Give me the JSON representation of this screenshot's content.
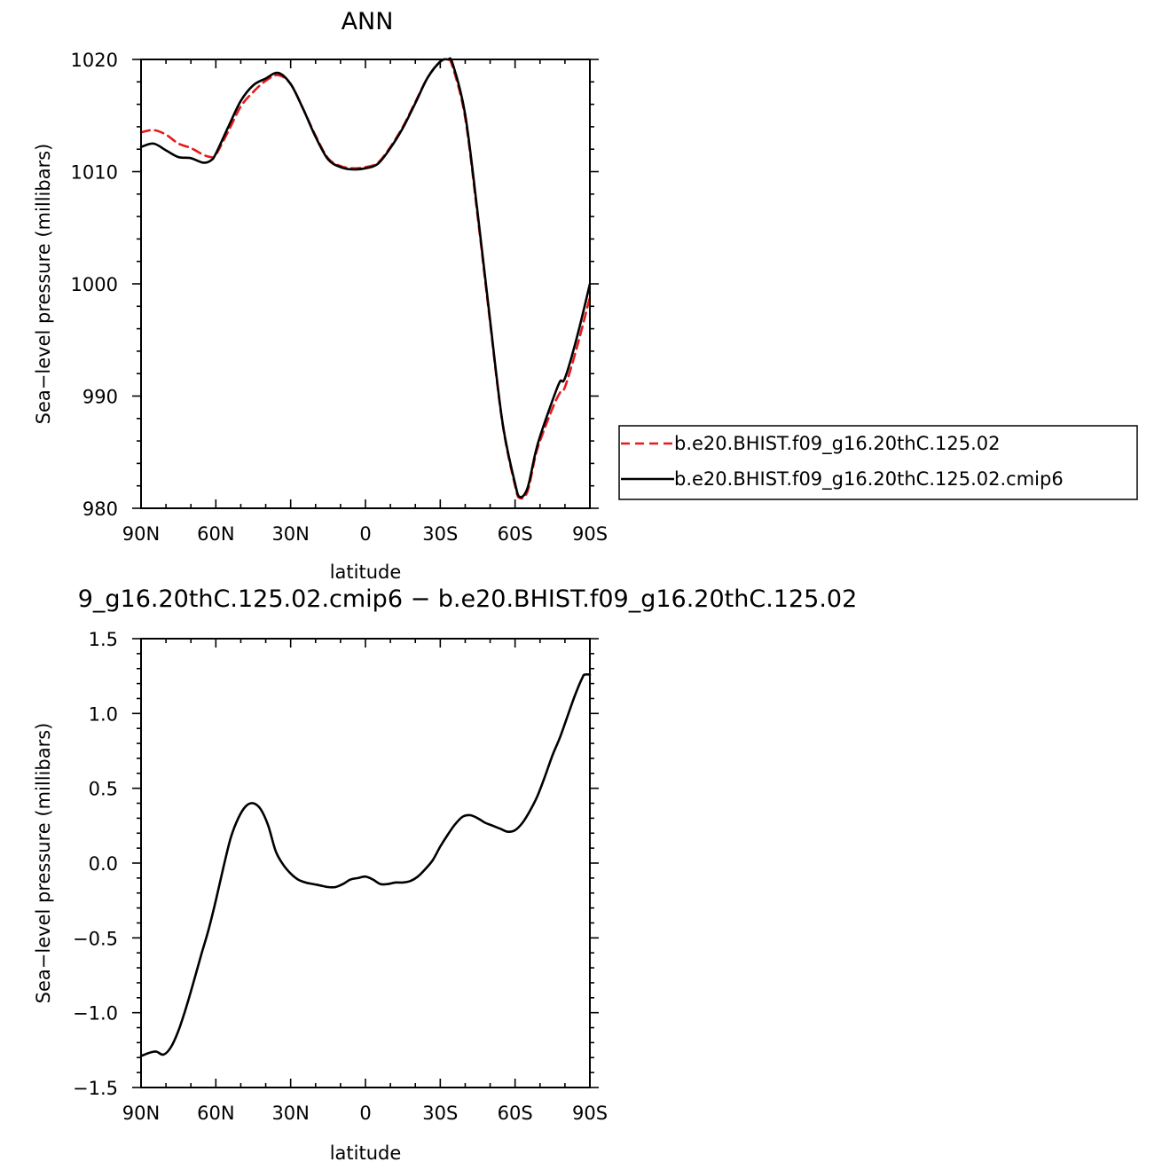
{
  "chart_data": [
    {
      "type": "line",
      "title": "ANN",
      "xlabel": "latitude",
      "ylabel": "Sea−level pressure (millibars)",
      "xlim": [
        90,
        -90
      ],
      "ylim": [
        980,
        1020
      ],
      "x_tick_labels": [
        "90N",
        "60N",
        "30N",
        "0",
        "30S",
        "60S",
        "90S"
      ],
      "y_tick_labels": [
        "1020",
        "1010",
        "1000",
        "990",
        "980"
      ],
      "grid": false,
      "legend": "right",
      "series": [
        {
          "name": "b.e20.BHIST.f09_g16.20thC.125.02",
          "color": "#e41a1c",
          "style": "dashed",
          "x": [
            90,
            85,
            80,
            75,
            70,
            65,
            62,
            60,
            55,
            50,
            45,
            40,
            35,
            30,
            25,
            20,
            15,
            10,
            5,
            0,
            -5,
            -10,
            -15,
            -20,
            -25,
            -30,
            -33,
            -35,
            -40,
            -45,
            -50,
            -55,
            -60,
            -62,
            -65,
            -68,
            -70,
            -75,
            -78,
            -80,
            -85,
            -90
          ],
          "y": [
            1013.5,
            1013.7,
            1013.3,
            1012.5,
            1012.1,
            1011.5,
            1011.3,
            1011.5,
            1013.6,
            1015.8,
            1017.1,
            1018.1,
            1018.6,
            1017.8,
            1015.6,
            1013.2,
            1011.2,
            1010.5,
            1010.3,
            1010.4,
            1010.8,
            1012.2,
            1014.0,
            1016.2,
            1018.4,
            1019.8,
            1020.0,
            1019.3,
            1014.8,
            1006.0,
            996.5,
            987.5,
            982.0,
            980.9,
            981.5,
            984.5,
            986.0,
            988.9,
            990.3,
            990.8,
            994.5,
            998.8
          ]
        },
        {
          "name": "b.e20.BHIST.f09_g16.20thC.125.02.cmip6",
          "color": "#000000",
          "style": "solid",
          "x": [
            90,
            85,
            80,
            75,
            70,
            65,
            62,
            60,
            55,
            50,
            45,
            40,
            35,
            30,
            25,
            20,
            15,
            10,
            5,
            0,
            -5,
            -10,
            -15,
            -20,
            -25,
            -30,
            -33,
            -35,
            -40,
            -45,
            -50,
            -55,
            -60,
            -62,
            -65,
            -68,
            -70,
            -75,
            -78,
            -80,
            -85,
            -90
          ],
          "y": [
            1012.2,
            1012.5,
            1011.9,
            1011.3,
            1011.2,
            1010.8,
            1011.0,
            1011.6,
            1014.0,
            1016.3,
            1017.7,
            1018.3,
            1018.8,
            1017.8,
            1015.6,
            1013.1,
            1011.1,
            1010.4,
            1010.2,
            1010.3,
            1010.7,
            1012.1,
            1013.9,
            1016.1,
            1018.4,
            1019.8,
            1020.0,
            1019.6,
            1015.1,
            1006.3,
            996.7,
            987.6,
            982.2,
            981.0,
            981.8,
            984.8,
            986.4,
            989.6,
            991.3,
            991.6,
            995.4,
            1000.0
          ]
        }
      ]
    },
    {
      "type": "line",
      "title": "9_g16.20thC.125.02.cmip6 − b.e20.BHIST.f09_g16.20thC.125.02",
      "xlabel": "latitude",
      "ylabel": "Sea−level pressure (millibars)",
      "xlim": [
        90,
        -90
      ],
      "ylim": [
        -1.5,
        1.5
      ],
      "x_tick_labels": [
        "90N",
        "60N",
        "30N",
        "0",
        "30S",
        "60S",
        "90S"
      ],
      "y_tick_labels": [
        "1.5",
        "1.0",
        "0.5",
        "0.0",
        "−0.5",
        "−1.0",
        "−1.5"
      ],
      "grid": false,
      "series": [
        {
          "color": "#000000",
          "style": "solid",
          "x": [
            90,
            87,
            84,
            81,
            78,
            75,
            72,
            69,
            66,
            63,
            60,
            57,
            54,
            51,
            48,
            45,
            42,
            39,
            36,
            33,
            30,
            27,
            24,
            21,
            18,
            15,
            12,
            9,
            6,
            3,
            0,
            -3,
            -6,
            -9,
            -12,
            -15,
            -18,
            -21,
            -24,
            -27,
            -30,
            -33,
            -36,
            -39,
            -42,
            -45,
            -48,
            -51,
            -54,
            -57,
            -60,
            -63,
            -66,
            -69,
            -72,
            -75,
            -78,
            -81,
            -84,
            -87,
            -88,
            -90
          ],
          "y": [
            -1.29,
            -1.27,
            -1.26,
            -1.28,
            -1.23,
            -1.12,
            -0.97,
            -0.8,
            -0.62,
            -0.45,
            -0.25,
            -0.03,
            0.17,
            0.3,
            0.38,
            0.4,
            0.36,
            0.25,
            0.08,
            -0.01,
            -0.07,
            -0.11,
            -0.13,
            -0.14,
            -0.15,
            -0.16,
            -0.16,
            -0.14,
            -0.11,
            -0.1,
            -0.09,
            -0.11,
            -0.14,
            -0.14,
            -0.13,
            -0.13,
            -0.12,
            -0.09,
            -0.04,
            0.02,
            0.11,
            0.19,
            0.26,
            0.31,
            0.32,
            0.3,
            0.27,
            0.25,
            0.23,
            0.21,
            0.22,
            0.27,
            0.35,
            0.45,
            0.58,
            0.72,
            0.84,
            0.98,
            1.12,
            1.24,
            1.26,
            1.26
          ]
        }
      ]
    }
  ]
}
